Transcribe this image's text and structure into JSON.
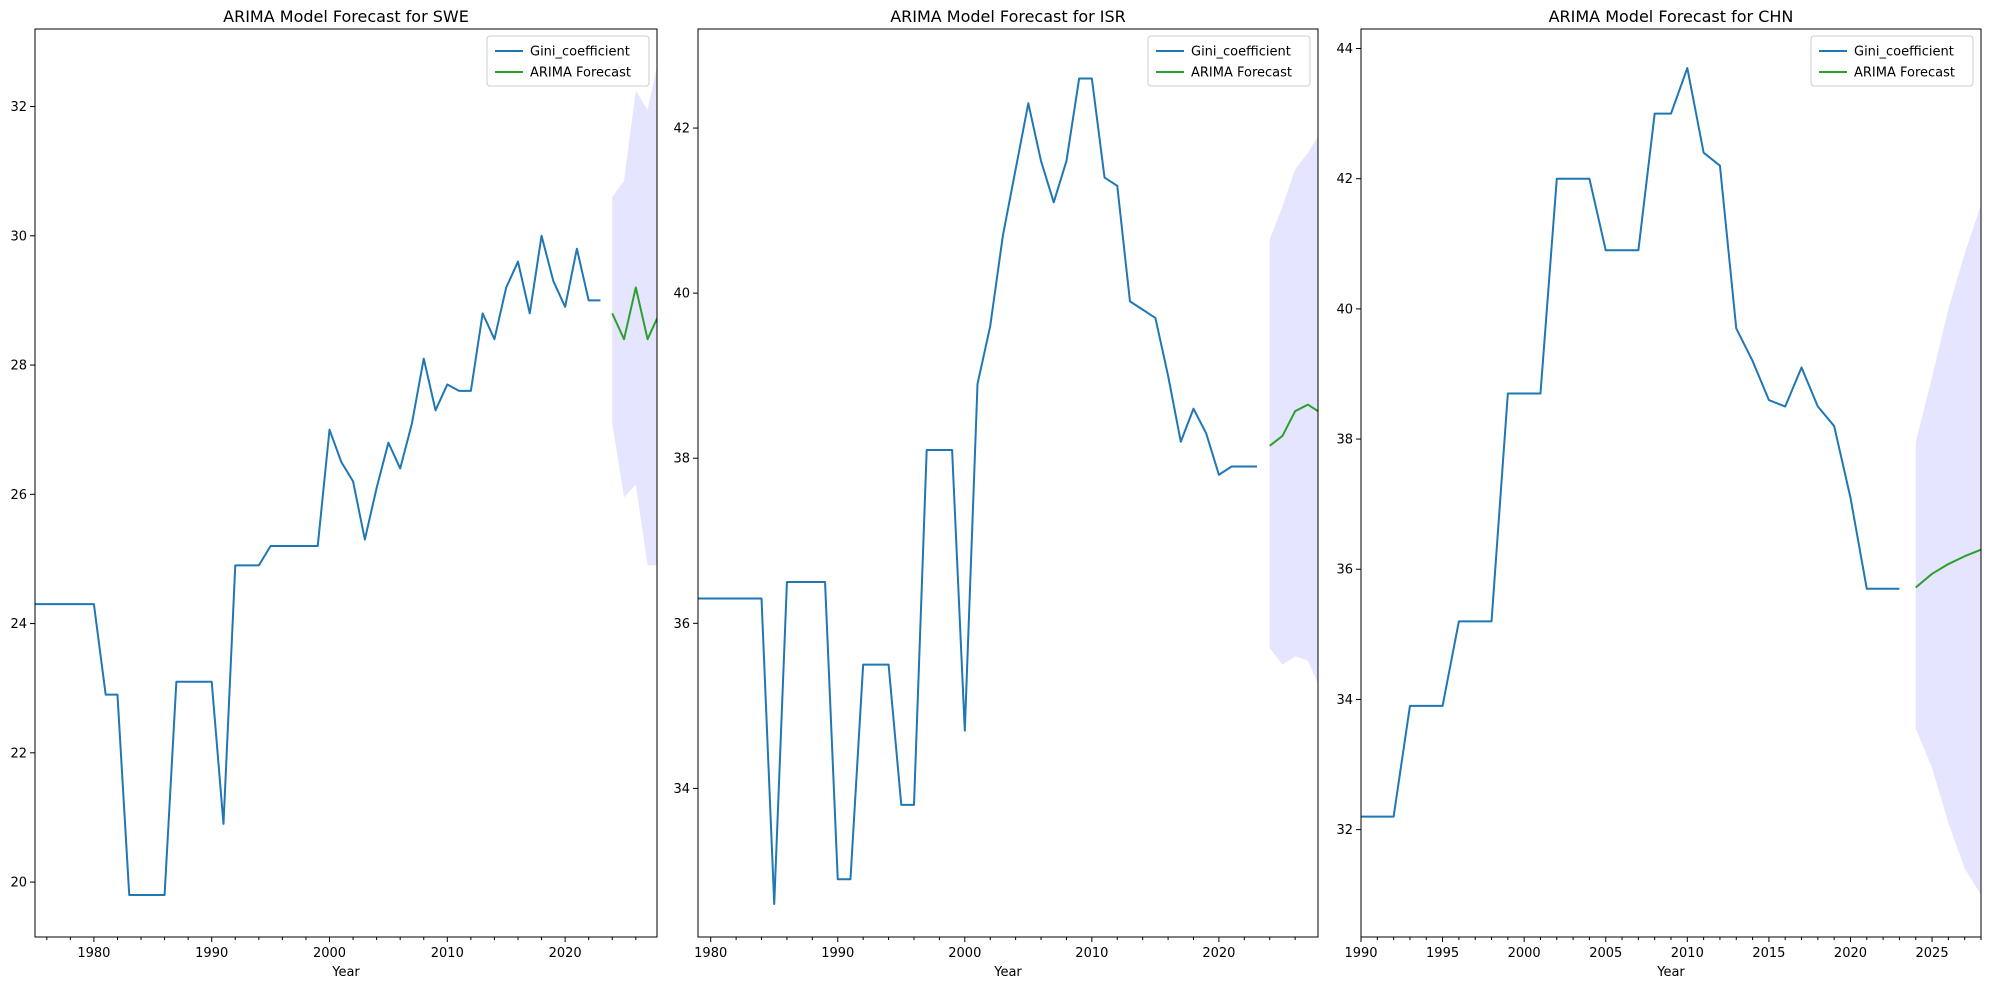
{
  "chart_data": [
    {
      "type": "line",
      "title": "ARIMA Model Forecast for SWE",
      "xlabel": "Year",
      "ylabel": "",
      "xlim": [
        1975,
        2027.8
      ],
      "ylim": [
        19.15,
        33.2
      ],
      "xticks": [
        1980,
        1990,
        2000,
        2010,
        2020
      ],
      "yticks": [
        20,
        22,
        24,
        26,
        28,
        30,
        32
      ],
      "grid": false,
      "legend": "top-right",
      "series": [
        {
          "name": "Gini_coefficient",
          "color": "#1f77b4",
          "x": [
            1975,
            1976,
            1977,
            1978,
            1979,
            1980,
            1981,
            1982,
            1983,
            1984,
            1985,
            1986,
            1987,
            1988,
            1989,
            1990,
            1991,
            1992,
            1993,
            1994,
            1995,
            1996,
            1997,
            1998,
            1999,
            2000,
            2001,
            2002,
            2003,
            2004,
            2005,
            2006,
            2007,
            2008,
            2009,
            2010,
            2011,
            2012,
            2013,
            2014,
            2015,
            2016,
            2017,
            2018,
            2019,
            2020,
            2021,
            2022,
            2023
          ],
          "y": [
            24.3,
            24.3,
            24.3,
            24.3,
            24.3,
            24.3,
            22.9,
            22.9,
            19.8,
            19.8,
            19.8,
            19.8,
            23.1,
            23.1,
            23.1,
            23.1,
            20.9,
            24.9,
            24.9,
            24.9,
            25.2,
            25.2,
            25.2,
            25.2,
            25.2,
            27.0,
            26.5,
            26.2,
            25.3,
            26.1,
            26.8,
            26.4,
            27.1,
            28.1,
            27.3,
            27.7,
            27.6,
            27.6,
            28.8,
            28.4,
            29.2,
            29.6,
            28.8,
            30.0,
            29.3,
            28.9,
            29.8,
            29.0,
            29.0
          ]
        },
        {
          "name": "ARIMA Forecast",
          "color": "#2ca02c",
          "x": [
            2024,
            2025,
            2026,
            2027,
            2028
          ],
          "y": [
            28.8,
            28.4,
            29.2,
            28.4,
            28.8
          ]
        }
      ],
      "confidence_band": {
        "color": "#0000ff",
        "x": [
          2024,
          2025,
          2026,
          2027,
          2028
        ],
        "lower": [
          27.1,
          25.95,
          26.15,
          24.9,
          24.9
        ],
        "upper": [
          30.6,
          30.85,
          32.25,
          31.95,
          32.8
        ]
      }
    },
    {
      "type": "line",
      "title": "ARIMA Model Forecast for ISR",
      "xlabel": "Year",
      "ylabel": "",
      "xlim": [
        1979,
        2027.8
      ],
      "ylim": [
        32.2,
        43.2
      ],
      "xticks": [
        1980,
        1990,
        2000,
        2010,
        2020
      ],
      "yticks": [
        34,
        36,
        38,
        40,
        42
      ],
      "grid": false,
      "legend": "top-right",
      "series": [
        {
          "name": "Gini_coefficient",
          "color": "#1f77b4",
          "x": [
            1979,
            1980,
            1981,
            1982,
            1983,
            1984,
            1985,
            1986,
            1987,
            1988,
            1989,
            1990,
            1991,
            1992,
            1993,
            1994,
            1995,
            1996,
            1997,
            1998,
            1999,
            2000,
            2001,
            2002,
            2003,
            2004,
            2005,
            2006,
            2007,
            2008,
            2009,
            2010,
            2011,
            2012,
            2013,
            2014,
            2015,
            2016,
            2017,
            2018,
            2019,
            2020,
            2021,
            2022,
            2023
          ],
          "y": [
            36.3,
            36.3,
            36.3,
            36.3,
            36.3,
            36.3,
            32.6,
            36.5,
            36.5,
            36.5,
            36.5,
            32.9,
            32.9,
            35.5,
            35.5,
            35.5,
            33.8,
            33.8,
            38.1,
            38.1,
            38.1,
            34.7,
            38.9,
            39.6,
            40.7,
            41.5,
            42.3,
            41.6,
            41.1,
            41.6,
            42.6,
            42.6,
            41.4,
            41.3,
            39.9,
            39.8,
            39.7,
            39.0,
            38.2,
            38.6,
            38.3,
            37.8,
            37.9,
            37.9,
            37.9
          ]
        },
        {
          "name": "ARIMA Forecast",
          "color": "#2ca02c",
          "x": [
            2024,
            2025,
            2026,
            2027,
            2028
          ],
          "y": [
            38.15,
            38.27,
            38.57,
            38.65,
            38.55
          ]
        }
      ],
      "confidence_band": {
        "color": "#0000ff",
        "x": [
          2024,
          2025,
          2026,
          2027,
          2028
        ],
        "lower": [
          35.7,
          35.5,
          35.6,
          35.55,
          35.2
        ],
        "upper": [
          40.65,
          41.05,
          41.5,
          41.7,
          41.95
        ]
      }
    },
    {
      "type": "line",
      "title": "ARIMA Model Forecast for CHN",
      "xlabel": "Year",
      "ylabel": "",
      "xlim": [
        1990,
        2028
      ],
      "ylim": [
        30.35,
        44.3
      ],
      "xticks": [
        1990,
        1995,
        2000,
        2005,
        2010,
        2015,
        2020,
        2025
      ],
      "yticks": [
        32,
        34,
        36,
        38,
        40,
        42,
        44
      ],
      "grid": false,
      "legend": "top-right",
      "series": [
        {
          "name": "Gini_coefficient",
          "color": "#1f77b4",
          "x": [
            1990,
            1991,
            1992,
            1993,
            1994,
            1995,
            1996,
            1997,
            1998,
            1999,
            2000,
            2001,
            2002,
            2003,
            2004,
            2005,
            2006,
            2007,
            2008,
            2009,
            2010,
            2011,
            2012,
            2013,
            2014,
            2015,
            2016,
            2017,
            2018,
            2019,
            2020,
            2021,
            2022,
            2023
          ],
          "y": [
            32.2,
            32.2,
            32.2,
            33.9,
            33.9,
            33.9,
            35.2,
            35.2,
            35.2,
            38.7,
            38.7,
            38.7,
            42.0,
            42.0,
            42.0,
            40.9,
            40.9,
            40.9,
            43.0,
            43.0,
            43.7,
            42.4,
            42.2,
            39.7,
            39.2,
            38.6,
            38.5,
            39.1,
            38.5,
            38.2,
            37.1,
            35.7,
            35.7,
            35.7
          ]
        },
        {
          "name": "ARIMA Forecast",
          "color": "#2ca02c",
          "x": [
            2024,
            2025,
            2026,
            2027,
            2028
          ],
          "y": [
            35.72,
            35.93,
            36.08,
            36.2,
            36.3
          ]
        }
      ],
      "confidence_band": {
        "color": "#0000ff",
        "x": [
          2024,
          2025,
          2026,
          2027,
          2028
        ],
        "lower": [
          33.55,
          32.95,
          32.1,
          31.4,
          31.0
        ],
        "upper": [
          37.95,
          38.95,
          40.0,
          40.85,
          41.6
        ]
      }
    }
  ]
}
